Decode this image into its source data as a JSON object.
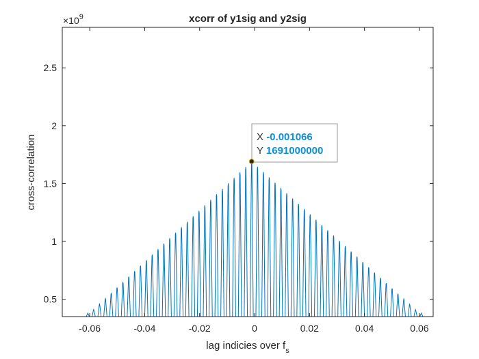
{
  "chart_data": {
    "type": "line",
    "title": "xcorr of y1sig and y2sig",
    "xlabel": "lag indicies over f",
    "xlabel_subscript": "s",
    "ylabel": "cross-correlation",
    "xlim": [
      -0.07,
      0.065
    ],
    "ylim": [
      350000000,
      2850000000
    ],
    "y_exponent_label": "×10",
    "y_exponent_power": "9",
    "x_ticks": [
      -0.06,
      -0.04,
      -0.02,
      0,
      0.02,
      0.04,
      0.06
    ],
    "x_tick_labels": [
      "-0.06",
      "-0.04",
      "-0.02",
      "0",
      "0.02",
      "0.04",
      "0.06"
    ],
    "y_ticks": [
      500000000,
      1000000000,
      1500000000,
      2000000000,
      2500000000
    ],
    "y_tick_labels": [
      "0.5",
      "1",
      "1.5",
      "2",
      "2.5"
    ],
    "grid": false,
    "series": [
      {
        "color": "#0072bd",
        "peak_lag": -0.001066,
        "peak_value": 1691000000,
        "peak_spacing": 0.00213,
        "first_lag": -0.06,
        "last_lag": 0.06,
        "edge_value": 380000000
      }
    ],
    "annotation": {
      "x_label": "X",
      "x_value": "-0.001066",
      "y_label": "Y",
      "y_value": "1691000000",
      "x": -0.001066,
      "y": 1691000000,
      "value_color": "#0b8fd8"
    }
  }
}
